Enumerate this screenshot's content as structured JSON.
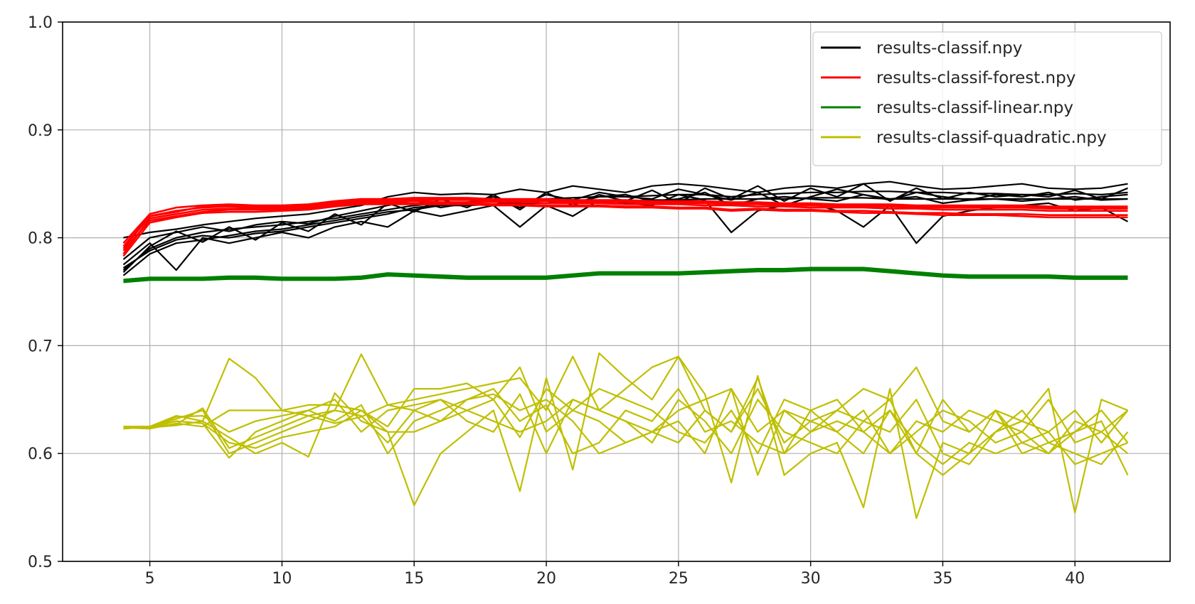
{
  "chart_data": {
    "type": "line",
    "title": "",
    "xlabel": "",
    "ylabel": "",
    "xlim": [
      1.7,
      43.6
    ],
    "ylim": [
      0.5,
      1.0
    ],
    "x_ticks": [
      5,
      10,
      15,
      20,
      25,
      30,
      35,
      40
    ],
    "y_ticks": [
      0.5,
      0.6,
      0.7,
      0.8,
      0.9,
      1.0
    ],
    "x_tick_labels": [
      "5",
      "10",
      "15",
      "20",
      "25",
      "30",
      "35",
      "40"
    ],
    "y_tick_labels": [
      "0.5",
      "0.6",
      "0.7",
      "0.8",
      "0.9",
      "1.0"
    ],
    "grid": true,
    "legend_position": "top-right",
    "x": [
      4,
      5,
      6,
      7,
      8,
      9,
      10,
      11,
      12,
      13,
      14,
      15,
      16,
      17,
      18,
      19,
      20,
      21,
      22,
      23,
      24,
      25,
      26,
      27,
      28,
      29,
      30,
      31,
      32,
      33,
      34,
      35,
      36,
      37,
      38,
      39,
      40,
      41,
      42
    ],
    "groups": [
      {
        "name": "results-classif.npy",
        "color": "#000000",
        "runs": [
          [
            0.77,
            0.79,
            0.8,
            0.805,
            0.808,
            0.81,
            0.812,
            0.815,
            0.818,
            0.822,
            0.826,
            0.83,
            0.832,
            0.833,
            0.834,
            0.835,
            0.836,
            0.837,
            0.838,
            0.838,
            0.839,
            0.84,
            0.84,
            0.838,
            0.84,
            0.841,
            0.842,
            0.842,
            0.843,
            0.843,
            0.842,
            0.842,
            0.841,
            0.841,
            0.84,
            0.84,
            0.841,
            0.84,
            0.842
          ],
          [
            0.78,
            0.8,
            0.805,
            0.81,
            0.806,
            0.812,
            0.815,
            0.813,
            0.82,
            0.825,
            0.83,
            0.835,
            0.828,
            0.832,
            0.838,
            0.83,
            0.84,
            0.835,
            0.842,
            0.838,
            0.836,
            0.845,
            0.84,
            0.835,
            0.842,
            0.83,
            0.838,
            0.845,
            0.84,
            0.835,
            0.842,
            0.838,
            0.835,
            0.84,
            0.838,
            0.842,
            0.835,
            0.838,
            0.84
          ],
          [
            0.765,
            0.785,
            0.795,
            0.798,
            0.802,
            0.806,
            0.808,
            0.812,
            0.816,
            0.82,
            0.824,
            0.826,
            0.83,
            0.832,
            0.834,
            0.828,
            0.836,
            0.832,
            0.838,
            0.84,
            0.834,
            0.836,
            0.842,
            0.83,
            0.836,
            0.838,
            0.836,
            0.834,
            0.84,
            0.836,
            0.838,
            0.832,
            0.835,
            0.836,
            0.834,
            0.836,
            0.838,
            0.835,
            0.836
          ],
          [
            0.775,
            0.795,
            0.77,
            0.8,
            0.795,
            0.8,
            0.805,
            0.8,
            0.81,
            0.815,
            0.81,
            0.825,
            0.82,
            0.825,
            0.83,
            0.81,
            0.83,
            0.82,
            0.835,
            0.832,
            0.83,
            0.84,
            0.835,
            0.805,
            0.825,
            0.83,
            0.832,
            0.825,
            0.81,
            0.83,
            0.795,
            0.82,
            0.825,
            0.828,
            0.83,
            0.832,
            0.825,
            0.828,
            0.815
          ],
          [
            0.8,
            0.805,
            0.808,
            0.812,
            0.815,
            0.818,
            0.82,
            0.822,
            0.826,
            0.83,
            0.838,
            0.842,
            0.84,
            0.841,
            0.84,
            0.845,
            0.842,
            0.848,
            0.845,
            0.842,
            0.848,
            0.85,
            0.848,
            0.845,
            0.842,
            0.846,
            0.848,
            0.846,
            0.85,
            0.852,
            0.848,
            0.845,
            0.846,
            0.848,
            0.85,
            0.846,
            0.845,
            0.846,
            0.85
          ],
          [
            0.772,
            0.788,
            0.798,
            0.802,
            0.8,
            0.804,
            0.806,
            0.81,
            0.814,
            0.818,
            0.822,
            0.828,
            0.83,
            0.83,
            0.831,
            0.832,
            0.832,
            0.834,
            0.834,
            0.834,
            0.835,
            0.835,
            0.836,
            0.836,
            0.836,
            0.836,
            0.837,
            0.837,
            0.837,
            0.836,
            0.836,
            0.836,
            0.836,
            0.836,
            0.836,
            0.836,
            0.836,
            0.836,
            0.836
          ],
          [
            0.768,
            0.792,
            0.806,
            0.796,
            0.81,
            0.798,
            0.814,
            0.806,
            0.822,
            0.812,
            0.832,
            0.824,
            0.836,
            0.828,
            0.84,
            0.826,
            0.842,
            0.83,
            0.84,
            0.834,
            0.844,
            0.832,
            0.846,
            0.836,
            0.848,
            0.834,
            0.846,
            0.838,
            0.85,
            0.834,
            0.846,
            0.836,
            0.842,
            0.838,
            0.84,
            0.838,
            0.844,
            0.836,
            0.846
          ]
        ]
      },
      {
        "name": "results-classif-forest.npy",
        "color": "#ff0000",
        "runs": [
          [
            0.79,
            0.82,
            0.825,
            0.828,
            0.829,
            0.828,
            0.828,
            0.829,
            0.832,
            0.834,
            0.834,
            0.835,
            0.835,
            0.835,
            0.834,
            0.834,
            0.834,
            0.833,
            0.833,
            0.833,
            0.832,
            0.832,
            0.832,
            0.831,
            0.831,
            0.83,
            0.83,
            0.829,
            0.829,
            0.829,
            0.828,
            0.828,
            0.828,
            0.828,
            0.828,
            0.827,
            0.827,
            0.827,
            0.827
          ],
          [
            0.785,
            0.818,
            0.822,
            0.826,
            0.827,
            0.827,
            0.827,
            0.828,
            0.831,
            0.833,
            0.833,
            0.834,
            0.833,
            0.833,
            0.833,
            0.833,
            0.832,
            0.832,
            0.832,
            0.831,
            0.831,
            0.831,
            0.83,
            0.83,
            0.829,
            0.829,
            0.828,
            0.828,
            0.828,
            0.827,
            0.827,
            0.826,
            0.826,
            0.826,
            0.826,
            0.825,
            0.825,
            0.825,
            0.825
          ],
          [
            0.795,
            0.822,
            0.828,
            0.83,
            0.831,
            0.83,
            0.83,
            0.831,
            0.834,
            0.836,
            0.836,
            0.837,
            0.837,
            0.837,
            0.836,
            0.836,
            0.836,
            0.835,
            0.835,
            0.835,
            0.834,
            0.834,
            0.834,
            0.833,
            0.833,
            0.832,
            0.832,
            0.831,
            0.831,
            0.831,
            0.83,
            0.83,
            0.83,
            0.83,
            0.83,
            0.829,
            0.829,
            0.829,
            0.829
          ],
          [
            0.788,
            0.816,
            0.82,
            0.824,
            0.826,
            0.826,
            0.826,
            0.827,
            0.83,
            0.832,
            0.832,
            0.832,
            0.832,
            0.832,
            0.831,
            0.831,
            0.83,
            0.83,
            0.83,
            0.829,
            0.829,
            0.828,
            0.828,
            0.826,
            0.827,
            0.826,
            0.826,
            0.825,
            0.825,
            0.824,
            0.823,
            0.823,
            0.822,
            0.822,
            0.822,
            0.821,
            0.821,
            0.821,
            0.821
          ],
          [
            0.792,
            0.82,
            0.824,
            0.829,
            0.83,
            0.829,
            0.829,
            0.83,
            0.833,
            0.835,
            0.835,
            0.836,
            0.836,
            0.836,
            0.835,
            0.835,
            0.835,
            0.834,
            0.834,
            0.834,
            0.833,
            0.833,
            0.833,
            0.832,
            0.832,
            0.831,
            0.831,
            0.83,
            0.83,
            0.83,
            0.829,
            0.829,
            0.829,
            0.829,
            0.829,
            0.828,
            0.828,
            0.828,
            0.828
          ],
          [
            0.783,
            0.814,
            0.819,
            0.823,
            0.824,
            0.824,
            0.825,
            0.826,
            0.829,
            0.831,
            0.831,
            0.831,
            0.831,
            0.831,
            0.83,
            0.83,
            0.829,
            0.829,
            0.829,
            0.828,
            0.828,
            0.827,
            0.827,
            0.825,
            0.826,
            0.825,
            0.825,
            0.824,
            0.823,
            0.823,
            0.822,
            0.821,
            0.821,
            0.821,
            0.82,
            0.819,
            0.819,
            0.819,
            0.819
          ]
        ]
      },
      {
        "name": "results-classif-linear.npy",
        "color": "#008000",
        "runs": [
          [
            0.76,
            0.762,
            0.762,
            0.762,
            0.763,
            0.763,
            0.762,
            0.762,
            0.762,
            0.763,
            0.766,
            0.765,
            0.764,
            0.763,
            0.763,
            0.763,
            0.763,
            0.765,
            0.767,
            0.767,
            0.767,
            0.767,
            0.768,
            0.769,
            0.77,
            0.77,
            0.771,
            0.771,
            0.771,
            0.769,
            0.767,
            0.765,
            0.764,
            0.764,
            0.764,
            0.764,
            0.763,
            0.763,
            0.763
          ],
          [
            0.761,
            0.763,
            0.763,
            0.763,
            0.764,
            0.764,
            0.763,
            0.763,
            0.763,
            0.764,
            0.767,
            0.766,
            0.765,
            0.764,
            0.764,
            0.764,
            0.764,
            0.766,
            0.768,
            0.768,
            0.768,
            0.768,
            0.769,
            0.77,
            0.771,
            0.771,
            0.772,
            0.772,
            0.772,
            0.77,
            0.768,
            0.766,
            0.765,
            0.765,
            0.765,
            0.765,
            0.764,
            0.764,
            0.764
          ],
          [
            0.759,
            0.761,
            0.761,
            0.761,
            0.762,
            0.762,
            0.761,
            0.761,
            0.761,
            0.762,
            0.765,
            0.764,
            0.763,
            0.762,
            0.762,
            0.762,
            0.762,
            0.764,
            0.766,
            0.766,
            0.766,
            0.766,
            0.767,
            0.768,
            0.769,
            0.769,
            0.77,
            0.77,
            0.77,
            0.768,
            0.766,
            0.764,
            0.763,
            0.763,
            0.763,
            0.763,
            0.762,
            0.762,
            0.762
          ]
        ]
      },
      {
        "name": "results-classif-quadratic.npy",
        "color": "#bfbf00",
        "runs": [
          [
            0.625,
            0.625,
            0.635,
            0.63,
            0.688,
            0.67,
            0.64,
            0.635,
            0.64,
            0.692,
            0.645,
            0.65,
            0.655,
            0.66,
            0.665,
            0.67,
            0.64,
            0.69,
            0.64,
            0.66,
            0.68,
            0.69,
            0.64,
            0.62,
            0.67,
            0.6,
            0.62,
            0.64,
            0.66,
            0.65,
            0.68,
            0.63,
            0.62,
            0.64,
            0.63,
            0.62,
            0.64,
            0.61,
            0.64
          ],
          [
            0.624,
            0.624,
            0.63,
            0.628,
            0.61,
            0.605,
            0.615,
            0.62,
            0.625,
            0.64,
            0.62,
            0.552,
            0.6,
            0.62,
            0.64,
            0.565,
            0.67,
            0.585,
            0.693,
            0.67,
            0.65,
            0.69,
            0.655,
            0.573,
            0.672,
            0.58,
            0.6,
            0.61,
            0.55,
            0.66,
            0.54,
            0.61,
            0.6,
            0.62,
            0.63,
            0.66,
            0.545,
            0.65,
            0.64
          ],
          [
            0.623,
            0.625,
            0.632,
            0.64,
            0.6,
            0.61,
            0.62,
            0.63,
            0.64,
            0.635,
            0.61,
            0.64,
            0.65,
            0.63,
            0.62,
            0.655,
            0.6,
            0.65,
            0.64,
            0.63,
            0.62,
            0.64,
            0.65,
            0.66,
            0.62,
            0.64,
            0.63,
            0.62,
            0.64,
            0.6,
            0.62,
            0.64,
            0.63,
            0.61,
            0.62,
            0.6,
            0.63,
            0.62,
            0.6
          ],
          [
            0.624,
            0.623,
            0.628,
            0.625,
            0.64,
            0.64,
            0.64,
            0.645,
            0.645,
            0.64,
            0.625,
            0.66,
            0.66,
            0.665,
            0.65,
            0.68,
            0.62,
            0.64,
            0.66,
            0.65,
            0.64,
            0.62,
            0.61,
            0.64,
            0.6,
            0.65,
            0.64,
            0.62,
            0.6,
            0.64,
            0.61,
            0.59,
            0.61,
            0.6,
            0.61,
            0.62,
            0.59,
            0.6,
            0.61
          ],
          [
            0.625,
            0.624,
            0.626,
            0.63,
            0.615,
            0.6,
            0.61,
            0.597,
            0.656,
            0.63,
            0.62,
            0.62,
            0.63,
            0.64,
            0.65,
            0.615,
            0.66,
            0.64,
            0.63,
            0.61,
            0.62,
            0.63,
            0.6,
            0.66,
            0.58,
            0.64,
            0.62,
            0.63,
            0.62,
            0.64,
            0.6,
            0.65,
            0.62,
            0.64,
            0.6,
            0.61,
            0.62,
            0.63,
            0.58
          ],
          [
            0.623,
            0.625,
            0.63,
            0.628,
            0.596,
            0.62,
            0.63,
            0.64,
            0.63,
            0.645,
            0.6,
            0.63,
            0.64,
            0.65,
            0.655,
            0.64,
            0.65,
            0.63,
            0.6,
            0.61,
            0.62,
            0.61,
            0.64,
            0.62,
            0.66,
            0.61,
            0.63,
            0.64,
            0.63,
            0.65,
            0.6,
            0.58,
            0.6,
            0.64,
            0.61,
            0.6,
            0.62,
            0.64,
            0.61
          ],
          [
            0.624,
            0.624,
            0.634,
            0.635,
            0.62,
            0.63,
            0.635,
            0.64,
            0.65,
            0.62,
            0.64,
            0.645,
            0.65,
            0.64,
            0.63,
            0.62,
            0.63,
            0.65,
            0.64,
            0.63,
            0.61,
            0.65,
            0.63,
            0.6,
            0.65,
            0.62,
            0.61,
            0.6,
            0.63,
            0.62,
            0.65,
            0.6,
            0.59,
            0.62,
            0.64,
            0.61,
            0.6,
            0.59,
            0.62
          ],
          [
            0.625,
            0.625,
            0.627,
            0.642,
            0.605,
            0.615,
            0.625,
            0.635,
            0.628,
            0.634,
            0.645,
            0.64,
            0.63,
            0.65,
            0.66,
            0.63,
            0.645,
            0.6,
            0.61,
            0.64,
            0.63,
            0.66,
            0.62,
            0.63,
            0.61,
            0.6,
            0.64,
            0.65,
            0.62,
            0.6,
            0.63,
            0.62,
            0.64,
            0.63,
            0.62,
            0.65,
            0.61,
            0.62,
            0.64
          ]
        ]
      }
    ]
  }
}
